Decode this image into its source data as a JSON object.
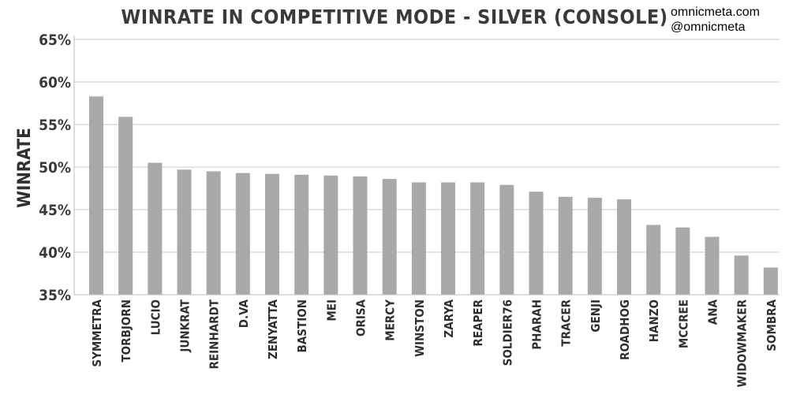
{
  "credit": {
    "line1": "omnicmeta.com",
    "line2": "@omnicmeta"
  },
  "colors": {
    "bar": "#a9a9a9",
    "grid": "#c8c8c8",
    "text": "#3a3a3a"
  },
  "chart_data": {
    "type": "bar",
    "title": "WINRATE IN COMPETITIVE MODE - SILVER (CONSOLE)",
    "xlabel": "",
    "ylabel": "WINRATE",
    "ylim": [
      35,
      65
    ],
    "yticks": [
      35,
      40,
      45,
      50,
      55,
      60,
      65
    ],
    "ytick_labels": [
      "35%",
      "40%",
      "45%",
      "50%",
      "55%",
      "60%",
      "65%"
    ],
    "grid": true,
    "legend": "none",
    "categories": [
      "SYMMETRA",
      "TORBJORN",
      "LUCIO",
      "JUNKRAT",
      "REINHARDT",
      "D.VA",
      "ZENYATTA",
      "BASTION",
      "MEI",
      "ORISA",
      "MERCY",
      "WINSTON",
      "ZARYA",
      "REAPER",
      "SOLDIER76",
      "PHARAH",
      "TRACER",
      "GENJI",
      "ROADHOG",
      "HANZO",
      "MCCREE",
      "ANA",
      "WIDOWMAKER",
      "SOMBRA"
    ],
    "values": [
      58.3,
      55.9,
      50.5,
      49.7,
      49.5,
      49.3,
      49.2,
      49.1,
      49.0,
      48.9,
      48.6,
      48.2,
      48.2,
      48.2,
      47.9,
      47.1,
      46.5,
      46.4,
      46.2,
      43.2,
      42.9,
      41.8,
      39.6,
      38.2
    ]
  }
}
